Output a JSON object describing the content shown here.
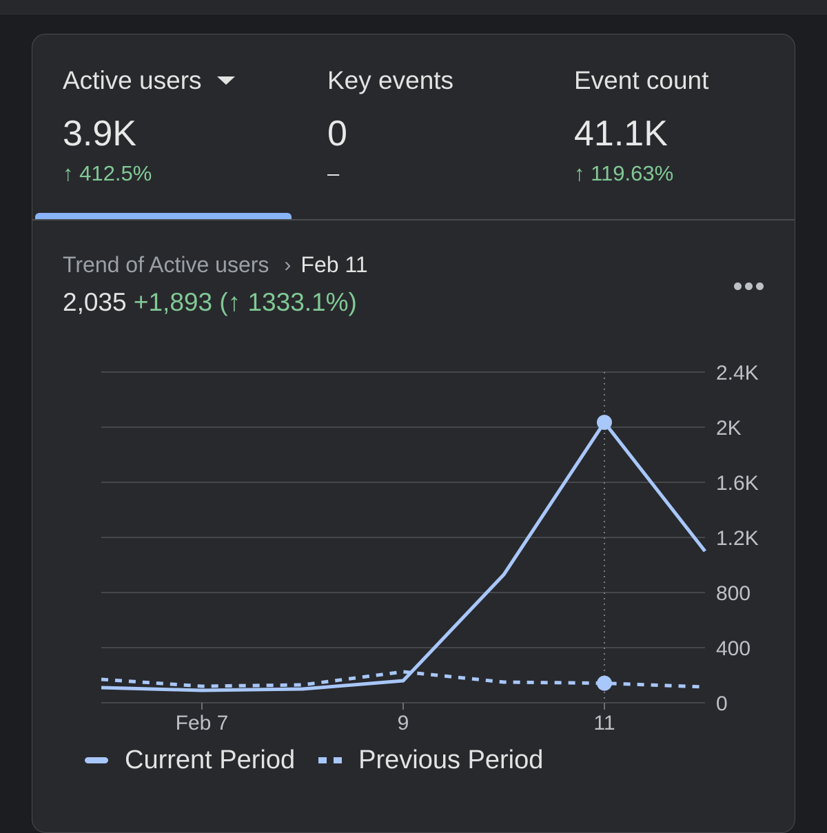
{
  "metrics": {
    "active_users": {
      "label": "Active users",
      "value": "3.9K",
      "change": "↑ 412.5%"
    },
    "key_events": {
      "label": "Key events",
      "value": "0",
      "change": "–"
    },
    "event_count": {
      "label": "Event count",
      "value": "41.1K",
      "change": "↑ 119.63%"
    }
  },
  "trend": {
    "title": "Trend of Active users",
    "date": "Feb 11",
    "value": "2,035",
    "delta": "+1,893",
    "delta_pct": "(↑ 1333.1%)"
  },
  "legend": {
    "current": "Current Period",
    "previous": "Previous Period"
  },
  "colors": {
    "line": "#a8c7fa",
    "accent": "#8ab4f8",
    "positive": "#81c995"
  },
  "chart_data": {
    "type": "line",
    "x": [
      "Feb 6",
      "Feb 7",
      "Feb 8",
      "Feb 9",
      "Feb 10",
      "Feb 11",
      "Feb 12"
    ],
    "tick_labels": {
      "Feb 7": "Feb 7",
      "Feb 9": "9",
      "Feb 11": "11"
    },
    "series": [
      {
        "name": "Current Period",
        "style": "solid",
        "values": [
          110,
          90,
          100,
          160,
          930,
          2035,
          1100
        ]
      },
      {
        "name": "Previous Period",
        "style": "dashed",
        "values": [
          170,
          120,
          130,
          225,
          150,
          142,
          115
        ]
      }
    ],
    "ylim": [
      0,
      2400
    ],
    "yticks": [
      "0",
      "400",
      "800",
      "1.2K",
      "1.6K",
      "2K",
      "2.4K"
    ],
    "highlight_x": "Feb 11",
    "grid": true,
    "legend_position": "bottom-left"
  }
}
